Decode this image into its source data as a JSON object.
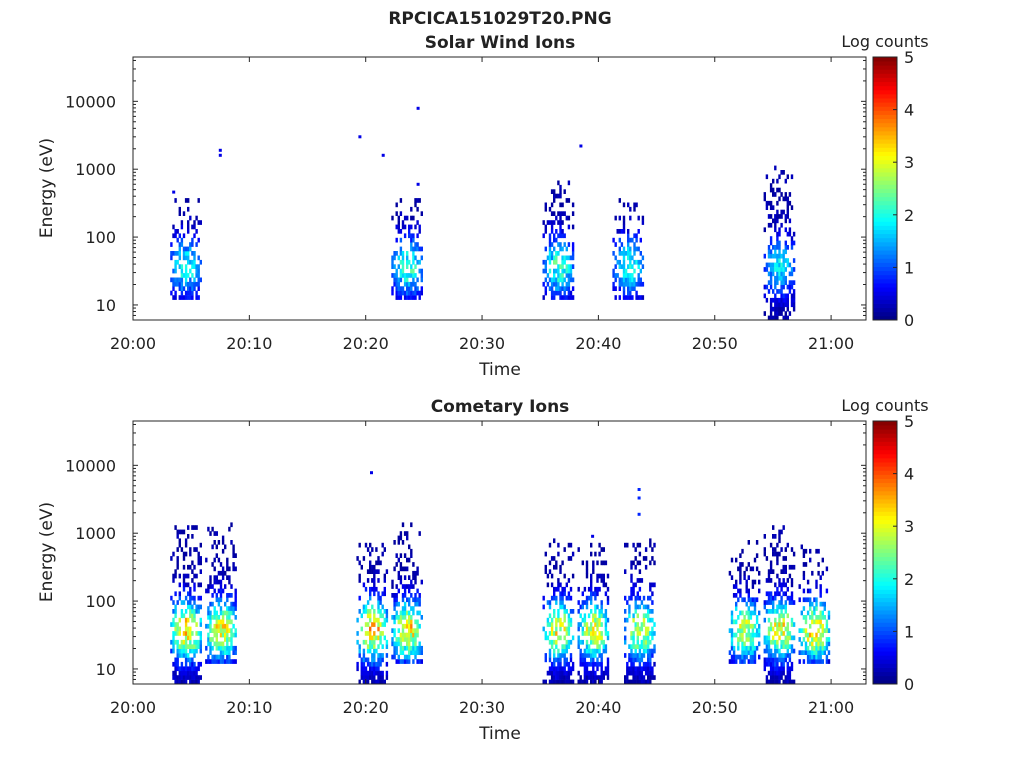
{
  "figure": {
    "title": "RPCICA151029T20.PNG"
  },
  "colorbar": {
    "title": "Log counts",
    "ticks": [
      "0",
      "1",
      "2",
      "3",
      "4",
      "5"
    ],
    "range": [
      0,
      5
    ],
    "colormap": "jet"
  },
  "chart_data": [
    {
      "type": "heatmap",
      "title": "Solar Wind Ions",
      "xlabel": "Time",
      "ylabel": "Energy (eV)",
      "xlim": [
        "20:00",
        "21:03"
      ],
      "ylim": [
        6,
        45000
      ],
      "yscale": "log",
      "x_ticks": [
        "20:00",
        "20:10",
        "20:20",
        "20:30",
        "20:40",
        "20:50",
        "21:00"
      ],
      "y_ticks": [
        "10",
        "100",
        "1000",
        "10000"
      ],
      "colorbar_title": "Log counts",
      "bursts": [
        {
          "start": "20:03",
          "end": "20:05",
          "energy_range": [
            12,
            330
          ],
          "peak_log_counts": 1.8
        },
        {
          "start": "20:22",
          "end": "20:24",
          "energy_range": [
            12,
            330
          ],
          "peak_log_counts": 2.0
        },
        {
          "start": "20:35",
          "end": "20:37",
          "energy_range": [
            12,
            600
          ],
          "peak_log_counts": 2.0
        },
        {
          "start": "20:41",
          "end": "20:43",
          "energy_range": [
            12,
            330
          ],
          "peak_log_counts": 1.8
        },
        {
          "start": "20:54",
          "end": "20:56",
          "energy_range": [
            6,
            1000
          ],
          "peak_log_counts": 1.6
        }
      ],
      "isolated_points": [
        {
          "time": "20:03",
          "energy": 460,
          "log_counts": 0.5
        },
        {
          "time": "20:07",
          "energy": 1600,
          "log_counts": 0.5
        },
        {
          "time": "20:07",
          "energy": 1900,
          "log_counts": 0.5
        },
        {
          "time": "20:19",
          "energy": 3000,
          "log_counts": 0.5
        },
        {
          "time": "20:21",
          "energy": 1600,
          "log_counts": 0.5
        },
        {
          "time": "20:24",
          "energy": 600,
          "log_counts": 0.5
        },
        {
          "time": "20:24",
          "energy": 7900,
          "log_counts": 0.5
        },
        {
          "time": "20:38",
          "energy": 2200,
          "log_counts": 0.5
        }
      ]
    },
    {
      "type": "heatmap",
      "title": "Cometary Ions",
      "xlabel": "Time",
      "ylabel": "Energy (eV)",
      "xlim": [
        "20:00",
        "21:03"
      ],
      "ylim": [
        6,
        45000
      ],
      "yscale": "log",
      "x_ticks": [
        "20:00",
        "20:10",
        "20:20",
        "20:30",
        "20:40",
        "20:50",
        "21:00"
      ],
      "y_ticks": [
        "10",
        "100",
        "1000",
        "10000"
      ],
      "colorbar_title": "Log counts",
      "bursts": [
        {
          "start": "20:03",
          "end": "20:05",
          "energy_range": [
            6,
            1400
          ],
          "peak_log_counts": 3.2
        },
        {
          "start": "20:06",
          "end": "20:08",
          "energy_range": [
            12,
            1300
          ],
          "peak_log_counts": 3.0
        },
        {
          "start": "20:19",
          "end": "20:21",
          "energy_range": [
            6,
            700
          ],
          "peak_log_counts": 3.3
        },
        {
          "start": "20:22",
          "end": "20:24",
          "energy_range": [
            12,
            1300
          ],
          "peak_log_counts": 3.1
        },
        {
          "start": "20:35",
          "end": "20:37",
          "energy_range": [
            6,
            800
          ],
          "peak_log_counts": 2.9
        },
        {
          "start": "20:38",
          "end": "20:40",
          "energy_range": [
            6,
            700
          ],
          "peak_log_counts": 2.9
        },
        {
          "start": "20:42",
          "end": "20:44",
          "energy_range": [
            6,
            900
          ],
          "peak_log_counts": 2.8
        },
        {
          "start": "20:51",
          "end": "20:53",
          "energy_range": [
            12,
            700
          ],
          "peak_log_counts": 2.7
        },
        {
          "start": "20:54",
          "end": "20:56",
          "energy_range": [
            6,
            1300
          ],
          "peak_log_counts": 3.0
        },
        {
          "start": "20:57",
          "end": "20:59",
          "energy_range": [
            12,
            600
          ],
          "peak_log_counts": 3.2
        }
      ],
      "isolated_points": [
        {
          "time": "20:20",
          "energy": 7800,
          "log_counts": 0.5
        },
        {
          "time": "20:43",
          "energy": 4400,
          "log_counts": 0.8
        },
        {
          "time": "20:43",
          "energy": 3300,
          "log_counts": 0.8
        },
        {
          "time": "20:43",
          "energy": 1900,
          "log_counts": 0.8
        },
        {
          "time": "20:39",
          "energy": 900,
          "log_counts": 0.5
        }
      ]
    }
  ]
}
